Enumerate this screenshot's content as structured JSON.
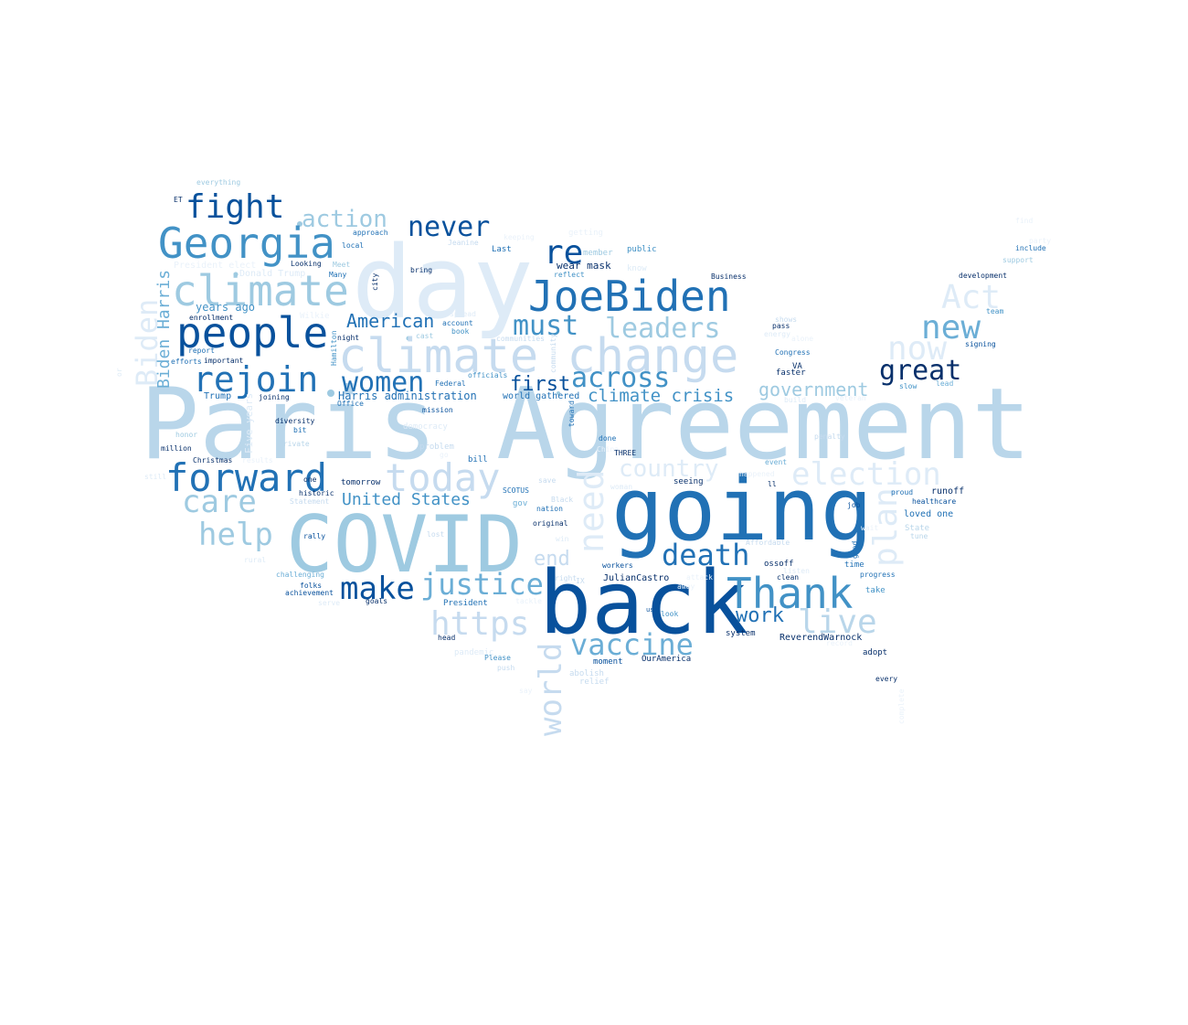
{
  "palette": {
    "c1": "#08306b",
    "c2": "#08519c",
    "c3": "#2171b5",
    "c4": "#4292c6",
    "c5": "#6baed6",
    "c6": "#9ecae1",
    "c7": "#b9d6ea",
    "c8": "#c6dbef",
    "c9": "#deebf7",
    "c10": "#eaf2fa"
  },
  "words": [
    {
      "text": "Paris Agreement",
      "color": "c7"
    },
    {
      "text": "day",
      "color": "c9"
    },
    {
      "text": "going",
      "color": "c3"
    },
    {
      "text": "back",
      "color": "c2"
    },
    {
      "text": "COVID",
      "color": "c6"
    },
    {
      "text": "climate change",
      "color": "c8"
    },
    {
      "text": "JoeBiden",
      "color": "c3"
    },
    {
      "text": "Georgia",
      "color": "c4"
    },
    {
      "text": "people",
      "color": "c2"
    },
    {
      "text": "climate",
      "color": "c6"
    },
    {
      "text": "Thank",
      "color": "c4"
    },
    {
      "text": "forward",
      "color": "c3"
    },
    {
      "text": "today",
      "color": "c8"
    },
    {
      "text": "rejoin",
      "color": "c3"
    },
    {
      "text": "fight",
      "color": "c2"
    },
    {
      "text": "re",
      "color": "c2"
    },
    {
      "text": "women",
      "color": "c3"
    },
    {
      "text": "never",
      "color": "c2"
    },
    {
      "text": "action",
      "color": "c6"
    },
    {
      "text": "must",
      "color": "c4"
    },
    {
      "text": "leaders",
      "color": "c6"
    },
    {
      "text": "Act",
      "color": "c9"
    },
    {
      "text": "new",
      "color": "c5"
    },
    {
      "text": "now",
      "color": "c9"
    },
    {
      "text": "great",
      "color": "c1"
    },
    {
      "text": "across",
      "color": "c4"
    },
    {
      "text": "first",
      "color": "c2"
    },
    {
      "text": "climate crisis",
      "color": "c4"
    },
    {
      "text": "government",
      "color": "c6"
    },
    {
      "text": "country",
      "color": "c9"
    },
    {
      "text": "election",
      "color": "c9"
    },
    {
      "text": "need",
      "color": "c9"
    },
    {
      "text": "plan",
      "color": "c9"
    },
    {
      "text": "world",
      "color": "c8"
    },
    {
      "text": "care",
      "color": "c6"
    },
    {
      "text": "help",
      "color": "c6"
    },
    {
      "text": "make",
      "color": "c2"
    },
    {
      "text": "justice",
      "color": "c5"
    },
    {
      "text": "https",
      "color": "c8"
    },
    {
      "text": "death",
      "color": "c3"
    },
    {
      "text": "end",
      "color": "c8"
    },
    {
      "text": "vaccine",
      "color": "c5"
    },
    {
      "text": "live",
      "color": "c7"
    },
    {
      "text": "work",
      "color": "c3"
    },
    {
      "text": "American",
      "color": "c3"
    },
    {
      "text": "United States",
      "color": "c4"
    },
    {
      "text": "Biden",
      "color": "c9"
    },
    {
      "text": "Biden Harris",
      "color": "c5"
    },
    {
      "text": "Harris administration",
      "color": "c3"
    },
    {
      "text": "years ago",
      "color": "c4"
    },
    {
      "text": "wear mask",
      "color": "c1"
    },
    {
      "text": "world gathered",
      "color": "c3"
    },
    {
      "text": "Five years",
      "color": "c9"
    },
    {
      "text": "ReverendWarnock",
      "color": "c1"
    },
    {
      "text": "JulianCastro",
      "color": "c1"
    },
    {
      "text": "OurAmerica",
      "color": "c1"
    },
    {
      "text": "loved one",
      "color": "c3"
    },
    {
      "text": "runoff",
      "color": "c1"
    },
    {
      "text": "Trump",
      "color": "c3"
    },
    {
      "text": "Donald Trump",
      "color": "c9"
    },
    {
      "text": "President elect",
      "color": "c10"
    },
    {
      "text": "everything",
      "color": "c6"
    },
    {
      "text": "ET",
      "color": "c1"
    },
    {
      "text": "approach",
      "color": "c3"
    },
    {
      "text": "local",
      "color": "c3"
    },
    {
      "text": "Looking",
      "color": "c1"
    },
    {
      "text": "Meet",
      "color": "c6"
    },
    {
      "text": "Many",
      "color": "c3"
    },
    {
      "text": "city",
      "color": "c1"
    },
    {
      "text": "bring",
      "color": "c1"
    },
    {
      "text": "Jeanine",
      "color": "c8"
    },
    {
      "text": "Last",
      "color": "c3"
    },
    {
      "text": "keeping",
      "color": "c10"
    },
    {
      "text": "getting",
      "color": "c10"
    },
    {
      "text": "member",
      "color": "c6"
    },
    {
      "text": "public",
      "color": "c4"
    },
    {
      "text": "know",
      "color": "c9"
    },
    {
      "text": "reflect",
      "color": "c4"
    },
    {
      "text": "Business",
      "color": "c1"
    },
    {
      "text": "development",
      "color": "c1"
    },
    {
      "text": "find",
      "color": "c10"
    },
    {
      "text": "party",
      "color": "c10"
    },
    {
      "text": "include",
      "color": "c3"
    },
    {
      "text": "support",
      "color": "c6"
    },
    {
      "text": "team",
      "color": "c4"
    },
    {
      "text": "signing",
      "color": "c2"
    },
    {
      "text": "shows",
      "color": "c8"
    },
    {
      "text": "pass",
      "color": "c1"
    },
    {
      "text": "energy",
      "color": "c9"
    },
    {
      "text": "alone",
      "color": "c10"
    },
    {
      "text": "Congress",
      "color": "c3"
    },
    {
      "text": "VA",
      "color": "c1"
    },
    {
      "text": "faster",
      "color": "c1"
    },
    {
      "text": "slow",
      "color": "c4"
    },
    {
      "text": "lead",
      "color": "c5"
    },
    {
      "text": "build",
      "color": "c9"
    },
    {
      "text": "veteran",
      "color": "c10"
    },
    {
      "text": "penalty",
      "color": "c8"
    },
    {
      "text": "Wilkie",
      "color": "c10"
    },
    {
      "text": "enrollment",
      "color": "c1"
    },
    {
      "text": "night",
      "color": "c1"
    },
    {
      "text": "Hamilton",
      "color": "c4"
    },
    {
      "text": "report",
      "color": "c3"
    },
    {
      "text": "important",
      "color": "c1"
    },
    {
      "text": "efforts",
      "color": "c3"
    },
    {
      "text": "account",
      "color": "c3"
    },
    {
      "text": "book",
      "color": "c4"
    },
    {
      "text": "spread",
      "color": "c9"
    },
    {
      "text": "cast",
      "color": "c6"
    },
    {
      "text": "communities",
      "color": "c8"
    },
    {
      "text": "community",
      "color": "c8"
    },
    {
      "text": "officials",
      "color": "c4"
    },
    {
      "text": "Federal",
      "color": "c3"
    },
    {
      "text": "Office",
      "color": "c3"
    },
    {
      "text": "joining",
      "color": "c1"
    },
    {
      "text": "mission",
      "color": "c2"
    },
    {
      "text": "toward",
      "color": "c3"
    },
    {
      "text": "diversity",
      "color": "c1"
    },
    {
      "text": "bit",
      "color": "c3"
    },
    {
      "text": "democracy",
      "color": "c9"
    },
    {
      "text": "honor",
      "color": "c6"
    },
    {
      "text": "million",
      "color": "c1"
    },
    {
      "text": "private",
      "color": "c7"
    },
    {
      "text": "problem",
      "color": "c8"
    },
    {
      "text": "go",
      "color": "c10"
    },
    {
      "text": "done",
      "color": "c3"
    },
    {
      "text": "China",
      "color": "c10"
    },
    {
      "text": "THREE",
      "color": "c1"
    },
    {
      "text": "bill",
      "color": "c3"
    },
    {
      "text": "Christmas",
      "color": "c1"
    },
    {
      "text": "results",
      "color": "c10"
    },
    {
      "text": "still",
      "color": "c9"
    },
    {
      "text": "one",
      "color": "c1"
    },
    {
      "text": "tomorrow",
      "color": "c1"
    },
    {
      "text": "historic",
      "color": "c1"
    },
    {
      "text": "Statement",
      "color": "c8"
    },
    {
      "text": "SCOTUS",
      "color": "c3"
    },
    {
      "text": "save",
      "color": "c8"
    },
    {
      "text": "gov",
      "color": "c5"
    },
    {
      "text": "Black",
      "color": "c8"
    },
    {
      "text": "nation",
      "color": "c3"
    },
    {
      "text": "original",
      "color": "c1"
    },
    {
      "text": "win",
      "color": "c9"
    },
    {
      "text": "lost",
      "color": "c8"
    },
    {
      "text": "rally",
      "color": "c2"
    },
    {
      "text": "rural",
      "color": "c9"
    },
    {
      "text": "challenging",
      "color": "c5"
    },
    {
      "text": "folks",
      "color": "c2"
    },
    {
      "text": "achievement",
      "color": "c2"
    },
    {
      "text": "serve",
      "color": "c9"
    },
    {
      "text": "goals",
      "color": "c1"
    },
    {
      "text": "President",
      "color": "c3"
    },
    {
      "text": "tackle",
      "color": "c10"
    },
    {
      "text": "us",
      "color": "c2"
    },
    {
      "text": "look",
      "color": "c4"
    },
    {
      "text": "right",
      "color": "c8"
    },
    {
      "text": "IX",
      "color": "c8"
    },
    {
      "text": "workers",
      "color": "c2"
    },
    {
      "text": "attack",
      "color": "c10"
    },
    {
      "text": "away",
      "color": "c10"
    },
    {
      "text": "woman",
      "color": "c9"
    },
    {
      "text": "seeing",
      "color": "c1"
    },
    {
      "text": "ll",
      "color": "c1"
    },
    {
      "text": "event",
      "color": "c5"
    },
    {
      "text": "happened",
      "color": "c10"
    },
    {
      "text": "proud",
      "color": "c3"
    },
    {
      "text": "healthcare",
      "color": "c2"
    },
    {
      "text": "job",
      "color": "c2"
    },
    {
      "text": "wait",
      "color": "c10"
    },
    {
      "text": "State",
      "color": "c7"
    },
    {
      "text": "tune",
      "color": "c7"
    },
    {
      "text": "Affordable",
      "color": "c8"
    },
    {
      "text": "ossoff",
      "color": "c1"
    },
    {
      "text": "listen",
      "color": "c9"
    },
    {
      "text": "clean",
      "color": "c1"
    },
    {
      "text": "good",
      "color": "c3"
    },
    {
      "text": "time",
      "color": "c3"
    },
    {
      "text": "progress",
      "color": "c3"
    },
    {
      "text": "take",
      "color": "c4"
    },
    {
      "text": "system",
      "color": "c1"
    },
    {
      "text": "record",
      "color": "c10"
    },
    {
      "text": "adopt",
      "color": "c1"
    },
    {
      "text": "every",
      "color": "c1"
    },
    {
      "text": "complete",
      "color": "c10"
    },
    {
      "text": "head",
      "color": "c1"
    },
    {
      "text": "pandemic",
      "color": "c9"
    },
    {
      "text": "Please",
      "color": "c4"
    },
    {
      "text": "push",
      "color": "c8"
    },
    {
      "text": "moment",
      "color": "c2"
    },
    {
      "text": "abolish",
      "color": "c8"
    },
    {
      "text": "relief",
      "color": "c8"
    },
    {
      "text": "say",
      "color": "c10"
    },
    {
      "text": "or",
      "color": "c9"
    }
  ]
}
